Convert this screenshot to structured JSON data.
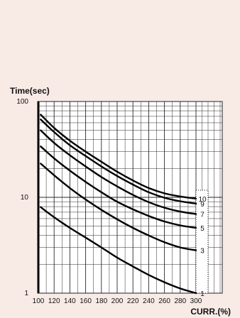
{
  "chart_data": {
    "type": "line",
    "ylabel": "Time(sec)",
    "xlabel": "CURR.(%)",
    "x_ticks": [
      "100",
      "120",
      "140",
      "160",
      "180",
      "200",
      "220",
      "240",
      "260",
      "280",
      "300"
    ],
    "y_ticks": [
      "1",
      "10",
      "100"
    ],
    "xlim": [
      100,
      300
    ],
    "ylim": [
      1,
      100
    ],
    "y_scale": "log",
    "grid": true,
    "series": [
      {
        "name": "10",
        "x": [
          103,
          120,
          140,
          160,
          180,
          200,
          220,
          240,
          260,
          280,
          300
        ],
        "y": [
          73,
          53,
          39,
          30,
          23.5,
          18.5,
          15,
          12.5,
          11,
          10.2,
          9.7
        ]
      },
      {
        "name": "9",
        "x": [
          103,
          120,
          140,
          160,
          180,
          200,
          220,
          240,
          260,
          280,
          300
        ],
        "y": [
          65,
          48,
          35,
          27,
          21,
          16.7,
          13.6,
          11.3,
          9.9,
          9.1,
          8.6
        ]
      },
      {
        "name": "7",
        "x": [
          103,
          120,
          140,
          160,
          180,
          200,
          220,
          240,
          260,
          280,
          300
        ],
        "y": [
          50,
          37,
          27.5,
          21,
          16.3,
          13,
          10.6,
          8.9,
          7.8,
          7.1,
          6.7
        ]
      },
      {
        "name": "5",
        "x": [
          103,
          120,
          140,
          160,
          180,
          200,
          220,
          240,
          260,
          280,
          300
        ],
        "y": [
          34,
          25.5,
          19,
          14.5,
          11.3,
          9,
          7.5,
          6.4,
          5.6,
          5.1,
          4.8
        ]
      },
      {
        "name": "3",
        "x": [
          103,
          120,
          140,
          160,
          180,
          200,
          220,
          240,
          260,
          280,
          300
        ],
        "y": [
          22.5,
          17,
          12.5,
          9.5,
          7.4,
          5.9,
          4.8,
          4.0,
          3.4,
          3.0,
          2.8
        ]
      },
      {
        "name": "1",
        "x": [
          103,
          120,
          140,
          160,
          180,
          200,
          220,
          240,
          260,
          280,
          300
        ],
        "y": [
          7.9,
          6.2,
          4.8,
          3.8,
          3.0,
          2.35,
          1.9,
          1.55,
          1.3,
          1.12,
          1.0
        ]
      }
    ],
    "curve_labels": [
      "10",
      "9",
      "7",
      "5",
      "3",
      "1"
    ]
  },
  "colors": {
    "background": "#f8ebe6",
    "plot": "#ffffff",
    "grid": "#2a2a2a",
    "curve": "#000000"
  }
}
